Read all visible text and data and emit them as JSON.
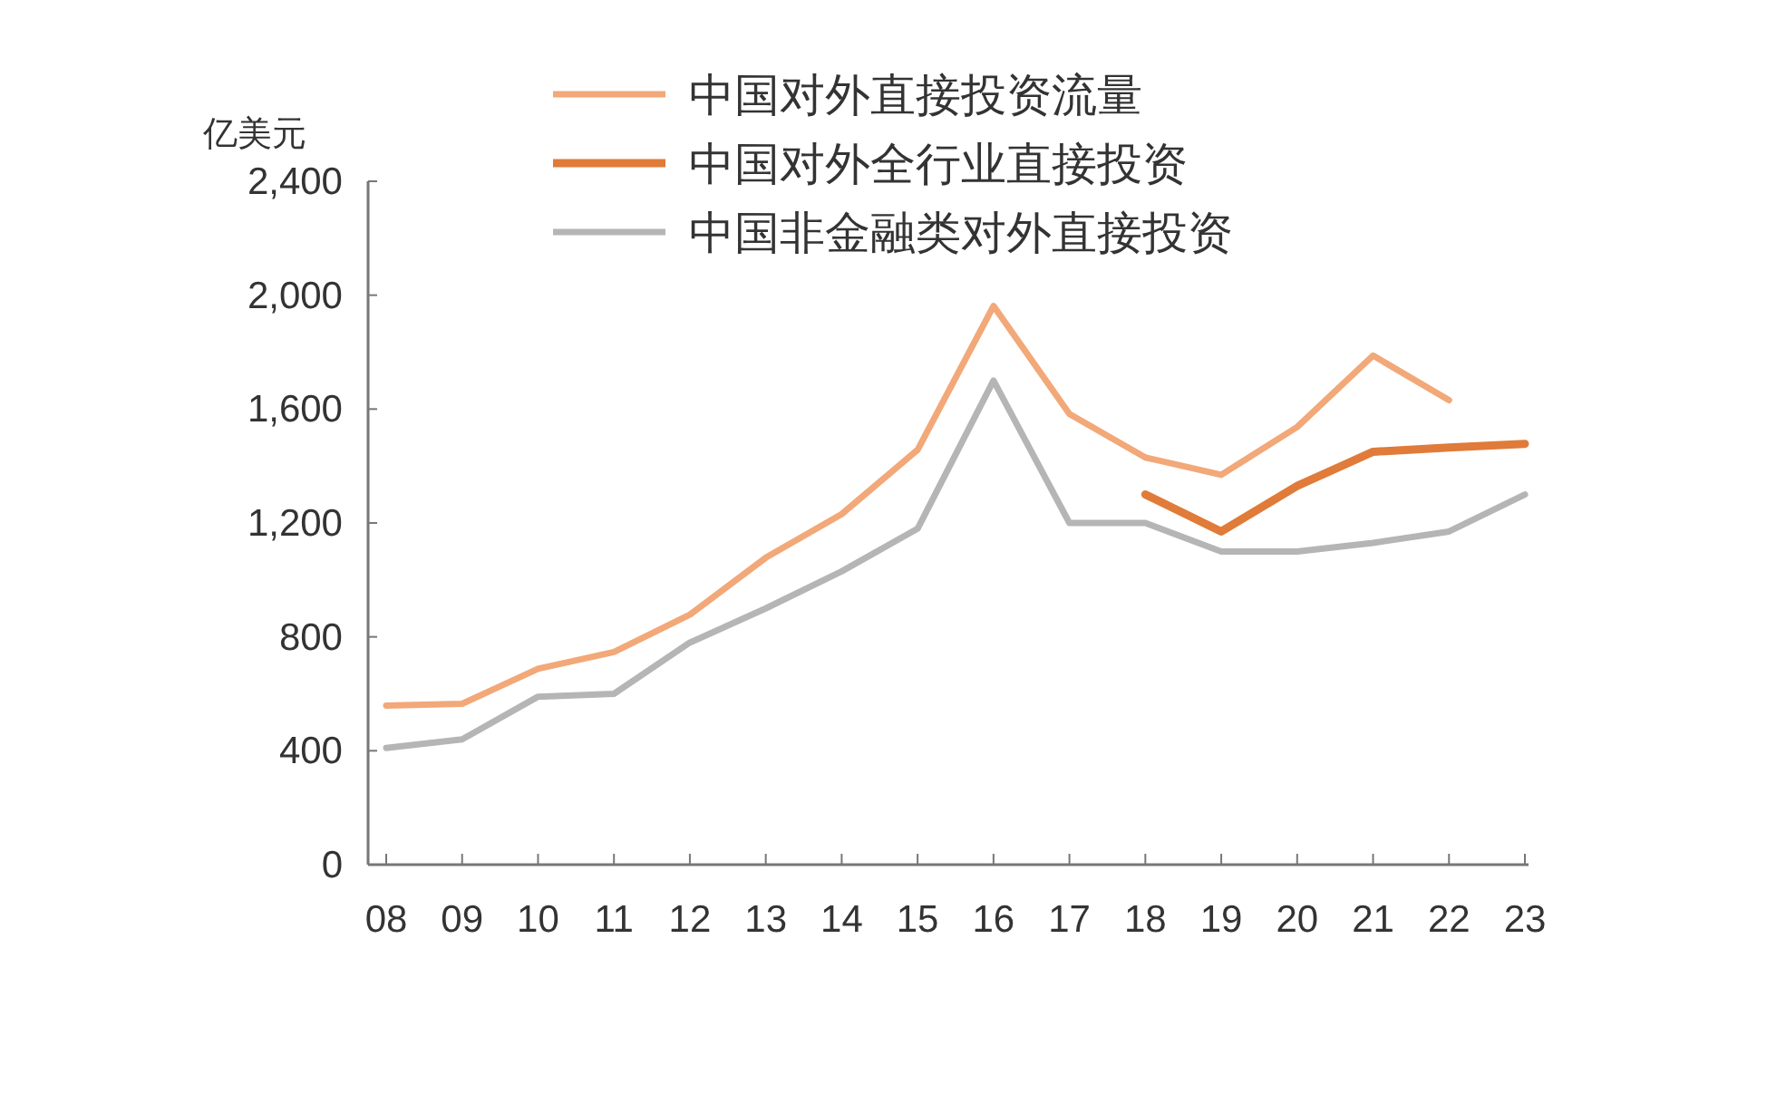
{
  "chart_data": {
    "type": "line",
    "ylabel": "亿美元",
    "categories": [
      "08",
      "09",
      "10",
      "11",
      "12",
      "13",
      "14",
      "15",
      "16",
      "17",
      "18",
      "19",
      "20",
      "21",
      "22",
      "23"
    ],
    "series": [
      {
        "name": "中国对外直接投资流量",
        "color": "#f2a878",
        "values": [
          559,
          565,
          688,
          747,
          878,
          1078,
          1231,
          1457,
          1962,
          1583,
          1430,
          1369,
          1537,
          1788,
          1631,
          null
        ]
      },
      {
        "name": "中国对外全行业直接投资",
        "color": "#e07b39",
        "values": [
          null,
          null,
          null,
          null,
          null,
          null,
          null,
          null,
          null,
          null,
          1300,
          1170,
          1330,
          1450,
          1465,
          1478
        ]
      },
      {
        "name": "中国非金融类对外直接投资",
        "color": "#b5b5b5",
        "values": [
          410,
          440,
          590,
          600,
          780,
          900,
          1030,
          1180,
          1700,
          1200,
          1200,
          1100,
          1100,
          1130,
          1170,
          1300
        ]
      }
    ],
    "ylim": [
      0,
      2400
    ],
    "yticks": [
      0,
      {
        "value": 400,
        "label": "400"
      },
      {
        "value": 800,
        "label": "800"
      },
      {
        "value": 1200,
        "label": "1,200"
      },
      {
        "value": 1600,
        "label": "1,600"
      },
      {
        "value": 2000,
        "label": "2,000"
      },
      {
        "value": 2400,
        "label": "2,400"
      }
    ],
    "legend": "top",
    "grid": false,
    "marker": "none",
    "line_style": "solid"
  }
}
